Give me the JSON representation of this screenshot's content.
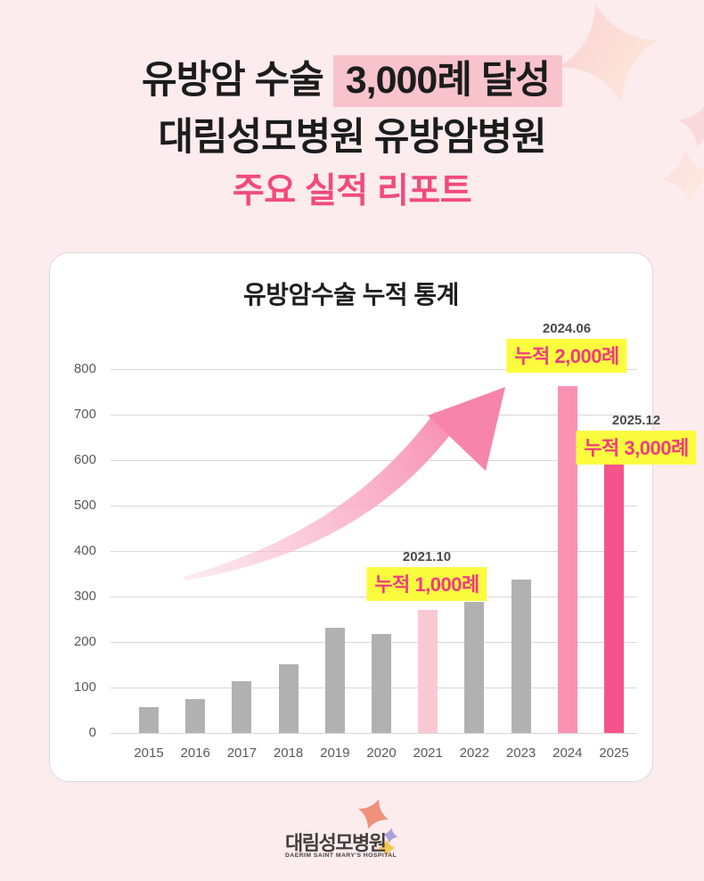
{
  "header": {
    "title_line1_prefix": "유방암 수술 ",
    "title_line1_highlight": "3,000례 달성",
    "title_line2": "대림성모병원 유방암병원",
    "title_line3": "주요 실적 리포트"
  },
  "colors": {
    "page_background": "#fcecee",
    "title_highlight_pink": "#f9c3cb",
    "subtitle_pink": "#f24a7c",
    "annotation_yellow": "#fcfc3f",
    "annotation_pink_text": "#f23b80",
    "bar_gray": "#b1b1b1",
    "bar_light_pink": "#fbc9d3",
    "bar_medium_pink": "#fa92b4",
    "bar_hot_pink": "#f6538c",
    "arrow_pink": "#f888ae"
  },
  "chart_data": {
    "type": "bar",
    "title": "유방암수술 누적 통계",
    "categories": [
      "2015",
      "2016",
      "2017",
      "2018",
      "2019",
      "2020",
      "2021",
      "2022",
      "2023",
      "2024",
      "2025"
    ],
    "values": [
      57,
      74,
      114,
      151,
      232,
      217,
      270,
      288,
      337,
      763,
      597
    ],
    "xlabel": "",
    "ylabel": "",
    "ylim": [
      0,
      800
    ],
    "yticks": [
      0,
      100,
      200,
      300,
      400,
      500,
      600,
      700,
      800
    ],
    "grid": true,
    "legend": "none",
    "bar_colors": {
      "default": "#b1b1b1",
      "2021": "#fbc9d3",
      "2024": "#fa92b4",
      "2025": "#f6538c"
    },
    "annotations": [
      {
        "date": "2021.10",
        "label": "누적 1,000례"
      },
      {
        "date": "2024.06",
        "label": "누적 2,000례"
      },
      {
        "date": "2025.12",
        "label": "누적 3,000례"
      }
    ]
  },
  "footer": {
    "logo_text": "대림성모병원",
    "logo_subtext": "DAERIM SAINT MARY'S HOSPITAL"
  }
}
